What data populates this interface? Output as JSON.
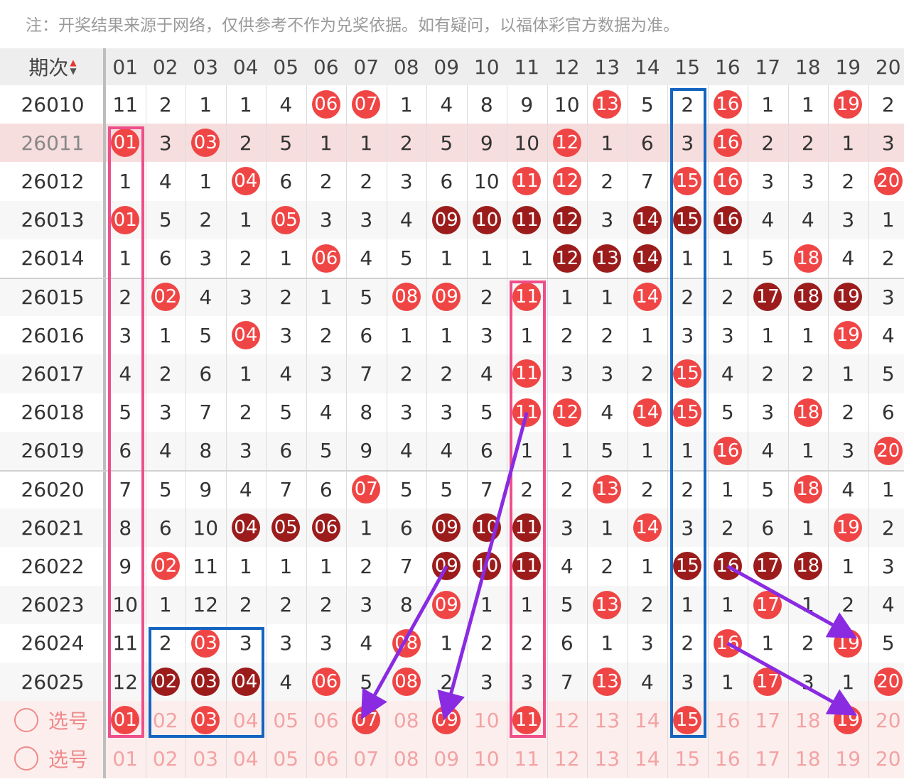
{
  "notice": "注：开奖结果来源于网络，仅供参考不作为兑奖依据。如有疑问，以福体彩官方数据为准。",
  "header": {
    "period_label": "期次",
    "columns": [
      "01",
      "02",
      "03",
      "04",
      "05",
      "06",
      "07",
      "08",
      "09",
      "10",
      "11",
      "12",
      "13",
      "14",
      "15",
      "16",
      "17",
      "18",
      "19",
      "20"
    ]
  },
  "rows": [
    {
      "period": "26010",
      "cells": [
        "11",
        "2",
        "1",
        "1",
        "4",
        "06",
        "07",
        "1",
        "4",
        "8",
        "9",
        "10",
        "13",
        "5",
        "2",
        "16",
        "1",
        "1",
        "19",
        "2"
      ],
      "balls": [
        6,
        7,
        13,
        16,
        19
      ],
      "dark": []
    },
    {
      "period": "26011",
      "cells": [
        "01",
        "3",
        "03",
        "2",
        "5",
        "1",
        "1",
        "2",
        "5",
        "9",
        "10",
        "12",
        "1",
        "6",
        "3",
        "16",
        "2",
        "2",
        "1",
        "3"
      ],
      "balls": [
        1,
        3,
        12,
        16
      ],
      "dark": []
    },
    {
      "period": "26012",
      "cells": [
        "1",
        "4",
        "1",
        "04",
        "6",
        "2",
        "2",
        "3",
        "6",
        "10",
        "11",
        "12",
        "2",
        "7",
        "15",
        "16",
        "3",
        "3",
        "2",
        "20"
      ],
      "balls": [
        4,
        11,
        12,
        15,
        16,
        20
      ],
      "dark": []
    },
    {
      "period": "26013",
      "cells": [
        "01",
        "5",
        "2",
        "1",
        "05",
        "3",
        "3",
        "4",
        "09",
        "10",
        "11",
        "12",
        "3",
        "14",
        "15",
        "16",
        "4",
        "4",
        "3",
        "1"
      ],
      "balls": [
        1,
        5,
        9,
        10,
        11,
        12,
        14,
        15,
        16
      ],
      "dark": [
        9,
        10,
        11,
        12,
        14,
        15,
        16
      ]
    },
    {
      "period": "26014",
      "cells": [
        "1",
        "6",
        "3",
        "2",
        "1",
        "06",
        "4",
        "5",
        "1",
        "1",
        "1",
        "12",
        "13",
        "14",
        "1",
        "1",
        "5",
        "18",
        "4",
        "2"
      ],
      "balls": [
        6,
        12,
        13,
        14,
        18
      ],
      "dark": [
        12,
        13,
        14
      ]
    },
    {
      "period": "26015",
      "cells": [
        "2",
        "02",
        "4",
        "3",
        "2",
        "1",
        "5",
        "08",
        "09",
        "2",
        "11",
        "1",
        "1",
        "14",
        "2",
        "2",
        "17",
        "18",
        "19",
        "3"
      ],
      "balls": [
        2,
        8,
        9,
        11,
        14,
        17,
        18,
        19
      ],
      "dark": [
        17,
        18,
        19
      ]
    },
    {
      "period": "26016",
      "cells": [
        "3",
        "1",
        "5",
        "04",
        "3",
        "2",
        "6",
        "1",
        "1",
        "3",
        "1",
        "2",
        "2",
        "1",
        "3",
        "3",
        "1",
        "1",
        "19",
        "4"
      ],
      "balls": [
        4,
        19
      ],
      "dark": []
    },
    {
      "period": "26017",
      "cells": [
        "4",
        "2",
        "6",
        "1",
        "4",
        "3",
        "7",
        "2",
        "2",
        "4",
        "11",
        "3",
        "3",
        "2",
        "15",
        "4",
        "2",
        "2",
        "1",
        "5"
      ],
      "balls": [
        11,
        15
      ],
      "dark": []
    },
    {
      "period": "26018",
      "cells": [
        "5",
        "3",
        "7",
        "2",
        "5",
        "4",
        "8",
        "3",
        "3",
        "5",
        "11",
        "12",
        "4",
        "14",
        "15",
        "5",
        "3",
        "18",
        "2",
        "6"
      ],
      "balls": [
        11,
        12,
        14,
        15,
        18
      ],
      "dark": []
    },
    {
      "period": "26019",
      "cells": [
        "6",
        "4",
        "8",
        "3",
        "6",
        "5",
        "9",
        "4",
        "4",
        "6",
        "1",
        "1",
        "5",
        "1",
        "1",
        "16",
        "4",
        "1",
        "3",
        "20"
      ],
      "balls": [
        16,
        20
      ],
      "dark": []
    },
    {
      "period": "26020",
      "cells": [
        "7",
        "5",
        "9",
        "4",
        "7",
        "6",
        "07",
        "5",
        "5",
        "7",
        "2",
        "2",
        "13",
        "2",
        "2",
        "1",
        "5",
        "18",
        "4",
        "1"
      ],
      "balls": [
        7,
        13,
        18
      ],
      "dark": []
    },
    {
      "period": "26021",
      "cells": [
        "8",
        "6",
        "10",
        "04",
        "05",
        "06",
        "1",
        "6",
        "09",
        "10",
        "11",
        "3",
        "1",
        "14",
        "3",
        "2",
        "6",
        "1",
        "19",
        "2"
      ],
      "balls": [
        4,
        5,
        6,
        9,
        10,
        11,
        14,
        19
      ],
      "dark": [
        4,
        5,
        6,
        9,
        10,
        11
      ]
    },
    {
      "period": "26022",
      "cells": [
        "9",
        "02",
        "11",
        "1",
        "1",
        "1",
        "2",
        "7",
        "09",
        "10",
        "11",
        "4",
        "2",
        "1",
        "15",
        "16",
        "17",
        "18",
        "1",
        "3"
      ],
      "balls": [
        2,
        9,
        10,
        11,
        15,
        16,
        17,
        18
      ],
      "dark": [
        9,
        10,
        11,
        15,
        16,
        17,
        18
      ]
    },
    {
      "period": "26023",
      "cells": [
        "10",
        "1",
        "12",
        "2",
        "2",
        "2",
        "3",
        "8",
        "09",
        "1",
        "1",
        "5",
        "13",
        "2",
        "1",
        "1",
        "17",
        "1",
        "2",
        "4"
      ],
      "balls": [
        9,
        13,
        17
      ],
      "dark": []
    },
    {
      "period": "26024",
      "cells": [
        "11",
        "2",
        "03",
        "3",
        "3",
        "3",
        "4",
        "08",
        "1",
        "2",
        "2",
        "6",
        "1",
        "3",
        "2",
        "16",
        "1",
        "2",
        "19",
        "5"
      ],
      "balls": [
        3,
        8,
        16,
        19
      ],
      "dark": []
    },
    {
      "period": "26025",
      "cells": [
        "12",
        "02",
        "03",
        "04",
        "4",
        "06",
        "5",
        "08",
        "2",
        "3",
        "3",
        "7",
        "13",
        "4",
        "3",
        "1",
        "17",
        "3",
        "1",
        "20"
      ],
      "balls": [
        2,
        3,
        4,
        6,
        8,
        13,
        17,
        20
      ],
      "dark": [
        2,
        3,
        4
      ]
    }
  ],
  "select_rows": [
    {
      "label": "选号",
      "selected": [
        1,
        3,
        7,
        9,
        11,
        15,
        19
      ]
    },
    {
      "label": "选号",
      "selected": []
    }
  ],
  "colors": {
    "ball_red": "#f04545",
    "ball_dark": "#9c1c1c",
    "highlight_row": "#f7dede",
    "pink_box": "#ee4f8a",
    "blue_box": "#1565c0",
    "arrow": "#8a2be2"
  }
}
